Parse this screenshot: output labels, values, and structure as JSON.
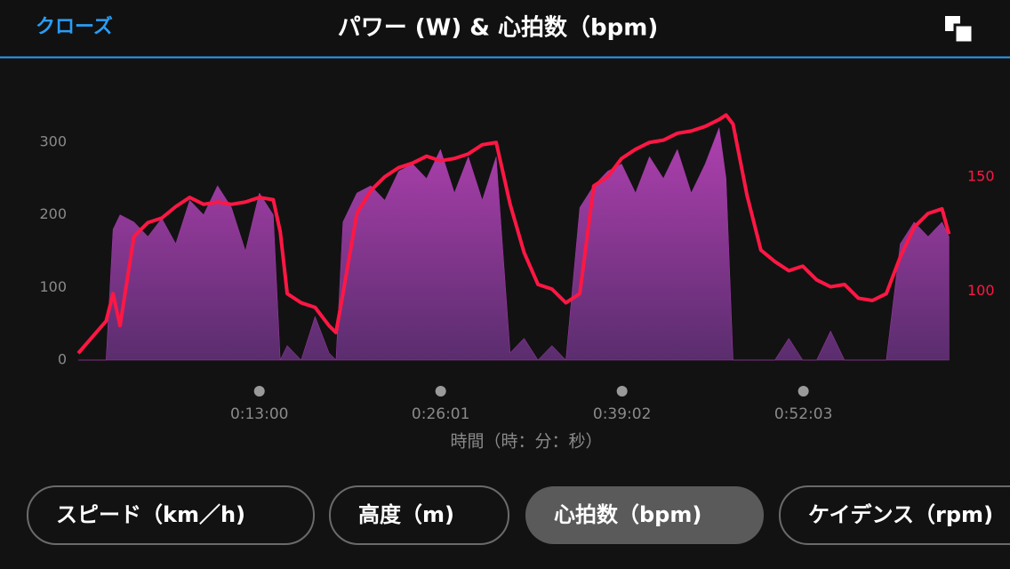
{
  "header": {
    "close": "クローズ",
    "title": "パワー (W) & 心拍数（bpm)"
  },
  "chart_data": {
    "type": "line",
    "x": [
      0,
      60,
      120,
      150,
      180,
      240,
      300,
      360,
      420,
      480,
      540,
      600,
      660,
      720,
      780,
      840,
      870,
      900,
      960,
      1020,
      1080,
      1110,
      1140,
      1200,
      1260,
      1320,
      1380,
      1440,
      1500,
      1560,
      1620,
      1680,
      1740,
      1800,
      1860,
      1920,
      1980,
      2040,
      2100,
      2160,
      2220,
      2280,
      2340,
      2400,
      2460,
      2520,
      2580,
      2640,
      2700,
      2760,
      2790,
      2820,
      2880,
      2940,
      3000,
      3060,
      3120,
      3180,
      3240,
      3300,
      3360,
      3420,
      3480,
      3540,
      3600,
      3660,
      3720,
      3750
    ],
    "xlim": [
      0,
      3760
    ],
    "xticks": [
      {
        "value": 780,
        "label": "0:13:00"
      },
      {
        "value": 1561,
        "label": "0:26:01"
      },
      {
        "value": 2342,
        "label": "0:39:02"
      },
      {
        "value": 3123,
        "label": "0:52:03"
      }
    ],
    "x_label": "時間（時：分：秒）",
    "ylim": [
      0,
      350
    ],
    "yticks": [
      0,
      100,
      200,
      300
    ],
    "y2lim": [
      70,
      181
    ],
    "y2ticks": [
      100,
      150
    ],
    "series": [
      {
        "type": "area",
        "color": "#a33aa6",
        "values": [
          0,
          0,
          0,
          180,
          200,
          190,
          170,
          195,
          160,
          220,
          200,
          240,
          210,
          150,
          230,
          200,
          0,
          20,
          0,
          60,
          10,
          0,
          190,
          230,
          240,
          220,
          260,
          270,
          250,
          290,
          230,
          280,
          220,
          280,
          10,
          30,
          0,
          20,
          0,
          210,
          240,
          260,
          270,
          230,
          280,
          250,
          290,
          230,
          270,
          320,
          250,
          0,
          0,
          0,
          0,
          30,
          0,
          0,
          40,
          0,
          0,
          0,
          0,
          160,
          190,
          170,
          190,
          170
        ]
      },
      {
        "type": "line",
        "axis": "y2",
        "color": "#ff1744",
        "values": [
          73,
          80,
          87,
          99,
          85,
          124,
          130,
          132,
          137,
          141,
          138,
          139,
          138,
          139,
          141,
          140,
          126,
          99,
          95,
          93,
          85,
          82,
          99,
          134,
          144,
          150,
          154,
          156,
          159,
          157,
          158,
          160,
          164,
          165,
          138,
          117,
          103,
          101,
          95,
          99,
          146,
          150,
          158,
          162,
          165,
          166,
          169,
          170,
          172,
          175,
          177,
          173,
          142,
          118,
          113,
          109,
          111,
          105,
          102,
          103,
          97,
          96,
          99,
          115,
          128,
          134,
          136,
          125
        ]
      }
    ]
  },
  "buttons": [
    "スピード（km／h)",
    "高度（m)",
    "心拍数（bpm)",
    "ケイデンス（rpm)"
  ]
}
